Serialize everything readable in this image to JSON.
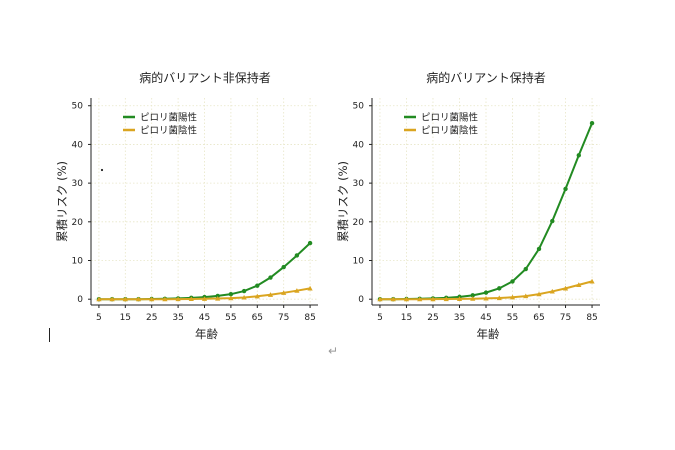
{
  "chart_data": [
    {
      "type": "line",
      "title": "病的バリアント非保持者",
      "xlabel": "年齢",
      "ylabel": "累積リスク (%)",
      "x": [
        5,
        10,
        15,
        20,
        25,
        30,
        35,
        40,
        45,
        50,
        55,
        60,
        65,
        70,
        75,
        80,
        85
      ],
      "xticks": [
        "5",
        "15",
        "25",
        "35",
        "45",
        "55",
        "65",
        "75",
        "85"
      ],
      "yticks": [
        "0",
        "10",
        "20",
        "30",
        "40",
        "50"
      ],
      "xlim": [
        2,
        88
      ],
      "ylim": [
        -1.5,
        52
      ],
      "grid": true,
      "legend_position": "top-left",
      "series": [
        {
          "name": "ピロリ菌陽性",
          "color": "#228B22",
          "marker": "circle",
          "values": [
            0,
            0,
            0,
            0,
            0.05,
            0.1,
            0.2,
            0.35,
            0.55,
            0.85,
            1.3,
            2.1,
            3.5,
            5.6,
            8.3,
            11.3,
            14.5
          ]
        },
        {
          "name": "ピロリ菌陰性",
          "color": "#DAA520",
          "marker": "triangle",
          "values": [
            0,
            0,
            0,
            0,
            0,
            0,
            0.03,
            0.06,
            0.1,
            0.17,
            0.27,
            0.45,
            0.75,
            1.15,
            1.65,
            2.2,
            2.8
          ]
        }
      ]
    },
    {
      "type": "line",
      "title": "病的バリアント保持者",
      "xlabel": "年齢",
      "ylabel": "累積リスク (%)",
      "x": [
        5,
        10,
        15,
        20,
        25,
        30,
        35,
        40,
        45,
        50,
        55,
        60,
        65,
        70,
        75,
        80,
        85
      ],
      "xticks": [
        "5",
        "15",
        "25",
        "35",
        "45",
        "55",
        "65",
        "75",
        "85"
      ],
      "yticks": [
        "0",
        "10",
        "20",
        "30",
        "40",
        "50"
      ],
      "xlim": [
        2,
        88
      ],
      "ylim": [
        -1.5,
        52
      ],
      "grid": true,
      "legend_position": "top-left",
      "series": [
        {
          "name": "ピロリ菌陽性",
          "color": "#228B22",
          "marker": "circle",
          "values": [
            0,
            0,
            0.05,
            0.1,
            0.2,
            0.35,
            0.6,
            1.0,
            1.7,
            2.8,
            4.6,
            7.8,
            13.0,
            20.2,
            28.5,
            37.2,
            45.5
          ]
        },
        {
          "name": "ピロリ菌陰性",
          "color": "#DAA520",
          "marker": "triangle",
          "values": [
            0,
            0,
            0,
            0,
            0.02,
            0.05,
            0.08,
            0.13,
            0.2,
            0.3,
            0.5,
            0.8,
            1.3,
            2.0,
            2.8,
            3.7,
            4.6
          ]
        }
      ]
    }
  ],
  "editor": {
    "return_mark": "↵"
  }
}
